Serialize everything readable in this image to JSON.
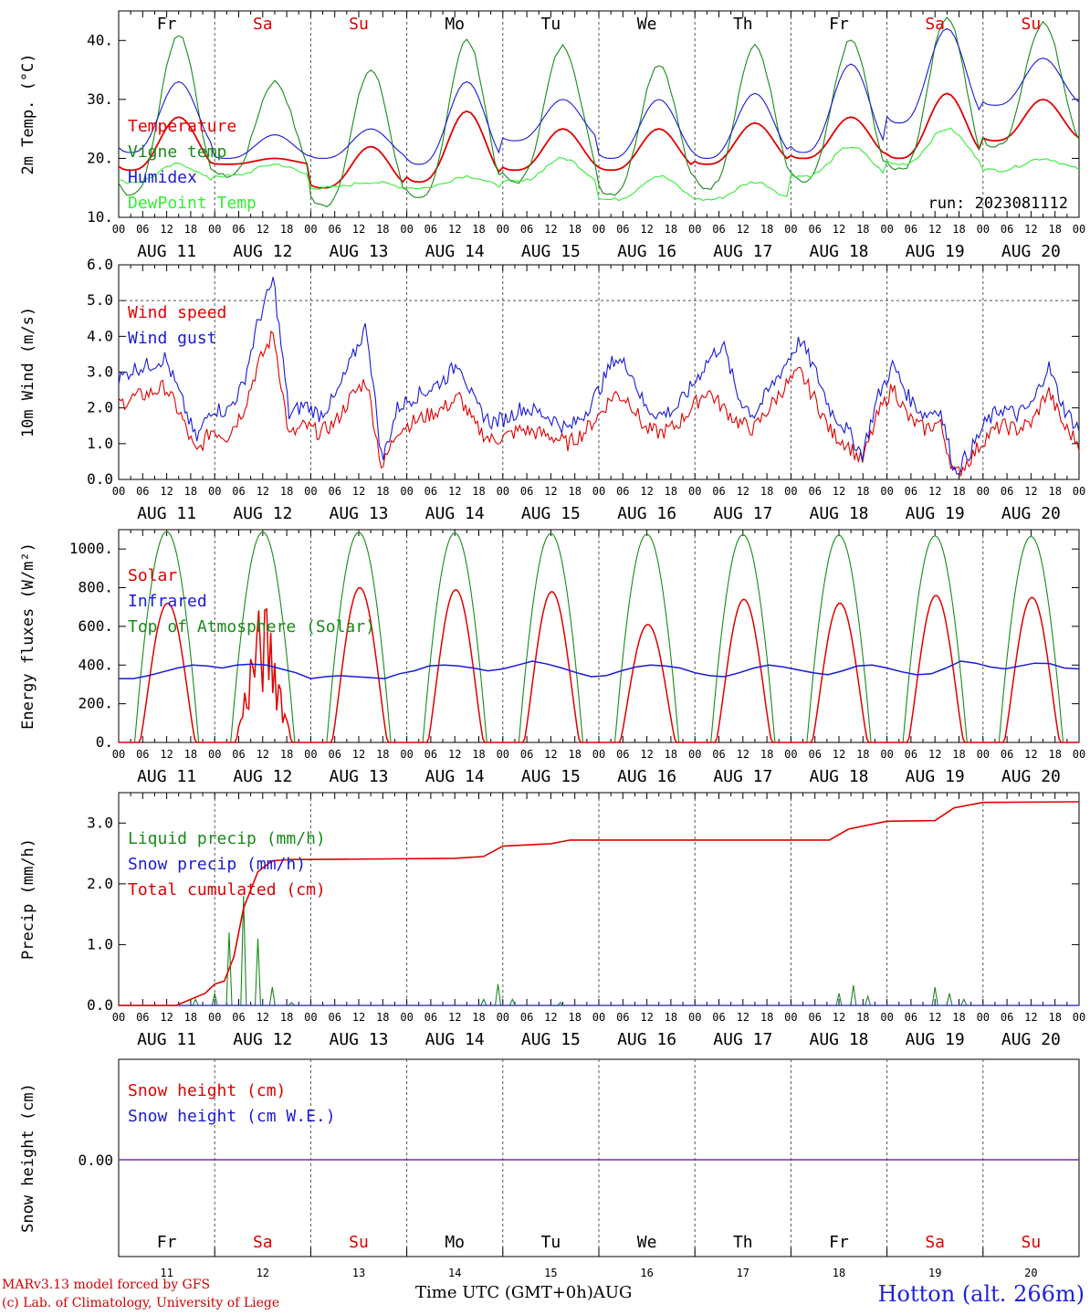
{
  "colors": {
    "red": "#e00000",
    "green": "#1a8a1a",
    "blue": "#1a1ad8",
    "lightgreen": "#33ee33",
    "purple": "#7030a0",
    "weekday": "#000000",
    "weekend": "#e00000"
  },
  "days_top": [
    "Fr",
    "Sa",
    "Su",
    "Mo",
    "Tu",
    "We",
    "Th",
    "Fr",
    "Sa",
    "Su"
  ],
  "weekend_flags": [
    false,
    true,
    true,
    false,
    false,
    false,
    false,
    false,
    true,
    true
  ],
  "day_numbers": [
    "11",
    "12",
    "13",
    "14",
    "15",
    "16",
    "17",
    "18",
    "19",
    "20"
  ],
  "date_labels": [
    "AUG 11",
    "AUG 12",
    "AUG 13",
    "AUG 14",
    "AUG 15",
    "AUG 16",
    "AUG 17",
    "AUG 18",
    "AUG 19",
    "AUG 20"
  ],
  "hour_ticks": [
    "00",
    "06",
    "12",
    "18"
  ],
  "end_tick": "00",
  "footer": {
    "credit1": "MARv3.13 model forced by GFS",
    "credit2": "(c) Lab. of Climatology, University of Liege",
    "xlabel": "Time UTC (GMT+0h)AUG",
    "station": "Hotton (alt. 266m)"
  },
  "chart_data": [
    {
      "type": "line",
      "ylabel": "2m Temp. (°C)",
      "ylim": [
        10,
        45
      ],
      "yticks": [
        "10.",
        "20.",
        "30.",
        "40."
      ],
      "run_label": "run: 2023081112",
      "days": 10,
      "series": [
        {
          "name": "Temperature",
          "color": "red",
          "min": [
            18,
            19,
            15,
            16,
            18,
            18,
            19,
            20,
            20,
            23
          ],
          "max": [
            27,
            20,
            22,
            28,
            25,
            25,
            26,
            27,
            31,
            30
          ]
        },
        {
          "name": "Vigne temp",
          "color": "green",
          "min": [
            14,
            17,
            12,
            13,
            16,
            14,
            15,
            16,
            18,
            22
          ],
          "max": [
            41,
            33,
            35,
            40,
            39,
            36,
            39,
            40,
            44,
            43
          ]
        },
        {
          "name": "Humidex",
          "color": "blue",
          "min": [
            21,
            20,
            20,
            19,
            23,
            20,
            20,
            21,
            26,
            29
          ],
          "max": [
            33,
            24,
            25,
            33,
            30,
            30,
            31,
            36,
            42,
            37
          ]
        },
        {
          "name": "DewPoint Temp",
          "color": "lightgreen",
          "min": [
            16,
            17,
            15,
            15,
            16,
            13,
            13,
            17,
            19,
            18
          ],
          "max": [
            19,
            19,
            16,
            17,
            20,
            17,
            16,
            22,
            25,
            20
          ]
        }
      ]
    },
    {
      "type": "line",
      "ylabel": "10m Wind (m/s)",
      "ylim": [
        0,
        6
      ],
      "yticks": [
        "0.0",
        "1.0",
        "2.0",
        "3.0",
        "4.0",
        "5.0",
        "6.0"
      ],
      "dashed_line": 5.0,
      "series": [
        {
          "name": "Wind speed",
          "color": "red",
          "values": [
            2.1,
            2.3,
            2.4,
            2.6,
            1.8,
            0.7,
            1.4,
            1.2,
            1.9,
            3.2,
            4.1,
            1.2,
            1.5,
            1.3,
            1.6,
            2.3,
            2.8,
            0.3,
            1.4,
            1.6,
            1.8,
            2.0,
            2.3,
            1.5,
            1.1,
            1.2,
            1.4,
            1.3,
            1.2,
            1.0,
            1.3,
            1.8,
            2.4,
            2.2,
            1.4,
            1.3,
            1.5,
            2.0,
            2.5,
            2.0,
            1.6,
            1.4,
            2.0,
            2.6,
            3.0,
            2.2,
            1.3,
            1.0,
            0.5,
            1.8,
            2.6,
            1.7,
            1.4,
            1.6,
            0.1,
            0.6,
            1.2,
            1.5,
            1.4,
            1.6,
            2.5,
            1.5,
            1.0
          ]
        },
        {
          "name": "Wind gust",
          "color": "blue",
          "values": [
            2.8,
            3.1,
            3.2,
            3.4,
            2.3,
            1.1,
            2.0,
            1.9,
            2.6,
            4.4,
            5.6,
            1.8,
            2.1,
            1.8,
            2.3,
            3.3,
            4.3,
            0.5,
            2.0,
            2.3,
            2.5,
            2.8,
            3.3,
            2.1,
            1.6,
            1.7,
            2.0,
            1.9,
            1.7,
            1.4,
            1.8,
            2.5,
            3.4,
            3.1,
            2.0,
            1.8,
            2.0,
            2.6,
            3.3,
            3.8,
            2.3,
            1.8,
            2.5,
            3.2,
            3.9,
            3.0,
            1.9,
            1.4,
            0.7,
            2.3,
            3.2,
            2.3,
            1.8,
            2.0,
            0.2,
            0.8,
            1.6,
            2.0,
            1.8,
            2.1,
            3.2,
            2.0,
            1.4
          ]
        }
      ]
    },
    {
      "type": "line",
      "ylabel": "Energy fluxes (W/m²)",
      "ylim": [
        0,
        1100
      ],
      "yticks": [
        "0.",
        "200.",
        "400.",
        "600.",
        "800.",
        "1000."
      ],
      "series": [
        {
          "name": "Solar",
          "color": "red",
          "peaks": [
            720,
            730,
            800,
            790,
            780,
            610,
            740,
            720,
            760,
            750
          ]
        },
        {
          "name": "Infrared",
          "color": "blue",
          "values": [
            330,
            330,
            345,
            365,
            385,
            400,
            395,
            385,
            400,
            405,
            400,
            380,
            360,
            330,
            340,
            345,
            340,
            335,
            330,
            355,
            370,
            395,
            400,
            395,
            385,
            370,
            380,
            400,
            420,
            405,
            385,
            360,
            340,
            345,
            370,
            390,
            400,
            395,
            385,
            360,
            345,
            340,
            360,
            385,
            400,
            390,
            375,
            360,
            350,
            370,
            395,
            400,
            385,
            365,
            350,
            355,
            385,
            420,
            410,
            390,
            380,
            395,
            410,
            408,
            385,
            380
          ]
        },
        {
          "name": "Top of Atmosphere (Solar)",
          "color": "green",
          "peaks": [
            1090,
            1088,
            1086,
            1083,
            1080,
            1077,
            1074,
            1071,
            1068,
            1065
          ]
        }
      ]
    },
    {
      "type": "line",
      "ylabel": "Precip (mm/h)",
      "ylim": [
        0,
        3.5
      ],
      "yticks": [
        "0.0",
        "1.0",
        "2.0",
        "3.0"
      ],
      "series": [
        {
          "name": "Liquid precip (mm/h)",
          "color": "green",
          "spikes": [
            [
              0.8,
              0.1
            ],
            [
              1.0,
              0.2
            ],
            [
              1.15,
              1.2
            ],
            [
              1.3,
              1.8
            ],
            [
              1.45,
              1.1
            ],
            [
              1.6,
              0.3
            ],
            [
              1.8,
              0.05
            ],
            [
              3.8,
              0.1
            ],
            [
              3.95,
              0.35
            ],
            [
              4.1,
              0.1
            ],
            [
              4.6,
              0.05
            ],
            [
              7.5,
              0.2
            ],
            [
              7.65,
              0.33
            ],
            [
              7.8,
              0.15
            ],
            [
              8.5,
              0.3
            ],
            [
              8.65,
              0.2
            ],
            [
              8.8,
              0.1
            ]
          ]
        },
        {
          "name": "Snow precip (mm/h)",
          "color": "blue",
          "values": [
            0
          ]
        },
        {
          "name": "Total cumulated (cm)",
          "color": "red",
          "x_days": [
            0,
            0.6,
            0.9,
            1.0,
            1.1,
            1.2,
            1.3,
            1.45,
            1.6,
            1.8,
            2.0,
            3.5,
            3.8,
            4.0,
            4.5,
            4.7,
            7.4,
            7.6,
            8.0,
            8.5,
            8.7,
            9.0,
            10.0
          ],
          "values": [
            0,
            0,
            0.2,
            0.35,
            0.4,
            0.8,
            1.6,
            2.2,
            2.38,
            2.4,
            2.4,
            2.42,
            2.45,
            2.62,
            2.66,
            2.72,
            2.72,
            2.9,
            3.03,
            3.04,
            3.25,
            3.34,
            3.35
          ]
        }
      ]
    },
    {
      "type": "line",
      "ylabel": "Snow height (cm)",
      "yticks": [
        "0.00"
      ],
      "series": [
        {
          "name": "Snow height (cm)",
          "color": "red",
          "values": [
            0
          ]
        },
        {
          "name": "Snow height (cm W.E.)",
          "color": "blue",
          "values": [
            0
          ]
        }
      ]
    }
  ]
}
